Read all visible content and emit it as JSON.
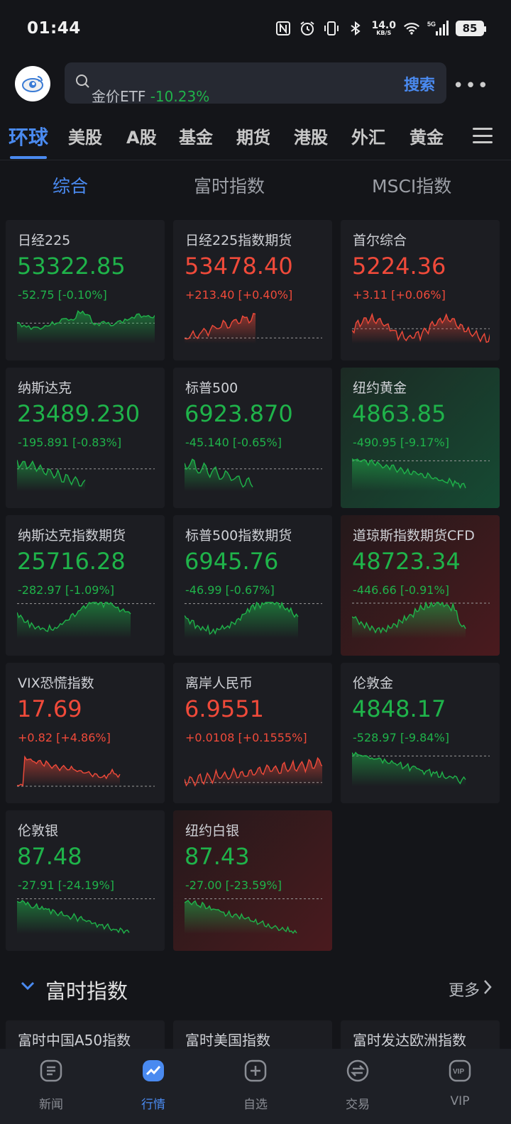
{
  "status": {
    "time": "01:44",
    "net_speed": "14.0",
    "net_unit": "KB/S",
    "network": "5G",
    "battery": "85"
  },
  "header": {
    "search_text": "金价ETF",
    "search_change": "-10.23%",
    "search_button": "搜索"
  },
  "main_tabs": [
    "环球",
    "美股",
    "A股",
    "基金",
    "期货",
    "港股",
    "外汇",
    "黄金"
  ],
  "sub_tabs": [
    "综合",
    "富时指数",
    "MSCI指数"
  ],
  "cards": [
    {
      "name": "日经225",
      "price": "53322.85",
      "change": "-52.75 [-0.10%]",
      "dir": "dn",
      "hl": "",
      "spark": "flat"
    },
    {
      "name": "日经225指数期货",
      "price": "53478.40",
      "change": "+213.40 [+0.40%]",
      "dir": "up",
      "hl": "",
      "spark": "rise-short"
    },
    {
      "name": "首尔综合",
      "price": "5224.36",
      "change": "+3.11 [+0.06%]",
      "dir": "up",
      "hl": "",
      "spark": "wave"
    },
    {
      "name": "纳斯达克",
      "price": "23489.230",
      "change": "-195.891 [-0.83%]",
      "dir": "dn",
      "hl": "",
      "spark": "fall-short"
    },
    {
      "name": "标普500",
      "price": "6923.870",
      "change": "-45.140 [-0.65%]",
      "dir": "dn",
      "hl": "",
      "spark": "fall-short2"
    },
    {
      "name": "纽约黄金",
      "price": "4863.85",
      "change": "-490.95 [-9.17%]",
      "dir": "dn",
      "hl": "hl-green",
      "spark": "fall-long"
    },
    {
      "name": "纳斯达克指数期货",
      "price": "25716.28",
      "change": "-282.97 [-1.09%]",
      "dir": "dn",
      "hl": "",
      "spark": "vwave"
    },
    {
      "name": "标普500指数期货",
      "price": "6945.76",
      "change": "-46.99 [-0.67%]",
      "dir": "dn",
      "hl": "",
      "spark": "vwave2"
    },
    {
      "name": "道琼斯指数期货CFD",
      "price": "48723.34",
      "change": "-446.66 [-0.91%]",
      "dir": "dn",
      "hl": "hl-red",
      "spark": "vwave3"
    },
    {
      "name": "VIX恐慌指数",
      "price": "17.69",
      "change": "+0.82 [+4.86%]",
      "dir": "up",
      "hl": "",
      "spark": "vix"
    },
    {
      "name": "离岸人民币",
      "price": "6.9551",
      "change": "+0.0108 [+0.1555%]",
      "dir": "up",
      "hl": "",
      "spark": "rise-long"
    },
    {
      "name": "伦敦金",
      "price": "4848.17",
      "change": "-528.97 [-9.84%]",
      "dir": "dn",
      "hl": "",
      "spark": "fall-long"
    },
    {
      "name": "伦敦银",
      "price": "87.48",
      "change": "-27.91 [-24.19%]",
      "dir": "dn",
      "hl": "",
      "spark": "fall-steep"
    },
    {
      "name": "纽约白银",
      "price": "87.43",
      "change": "-27.00 [-23.59%]",
      "dir": "dn",
      "hl": "hl-red",
      "spark": "fall-steep"
    }
  ],
  "section": {
    "title": "富时指数",
    "more": "更多"
  },
  "peek_cards": [
    "富时中国A50指数",
    "富时美国指数",
    "富时发达欧洲指数"
  ],
  "bottom_nav": [
    "新闻",
    "行情",
    "自选",
    "交易",
    "VIP"
  ],
  "colors": {
    "up": "#f04a3a",
    "down": "#1fb34a",
    "accent": "#4a8af0"
  }
}
